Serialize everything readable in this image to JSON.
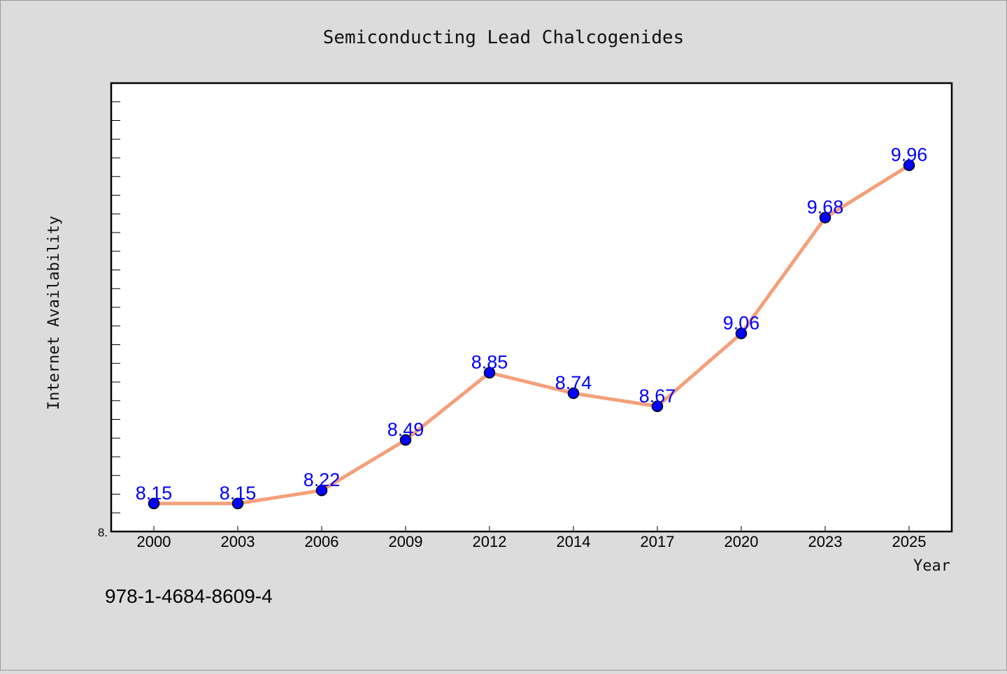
{
  "chart_data": {
    "type": "line",
    "title": "Semiconducting Lead Chalcogenides",
    "xlabel": "Year",
    "ylabel": "Internet Availability",
    "categories": [
      "2000",
      "2003",
      "2006",
      "2009",
      "2012",
      "2014",
      "2017",
      "2020",
      "2023",
      "2025"
    ],
    "series": [
      {
        "values": [
          8.15,
          8.15,
          8.22,
          8.49,
          8.85,
          8.74,
          8.67,
          9.06,
          9.68,
          9.96
        ]
      }
    ],
    "data_labels": [
      "8.15",
      "8.15",
      "8.22",
      "8.49",
      "8.85",
      "8.74",
      "8.67",
      "9.06",
      "9.68",
      "9.96"
    ],
    "ylim": [
      8.0,
      10.4
    ],
    "y_tick_label": "8.",
    "grid": false,
    "legend": "none",
    "colors": {
      "line": "#f4a07a",
      "marker": "#0000ff",
      "label": "#0000ff",
      "background": "#dcdcdc",
      "plot_background": "#ffffff"
    }
  },
  "footer": {
    "isbn": "978-1-4684-8609-4"
  }
}
